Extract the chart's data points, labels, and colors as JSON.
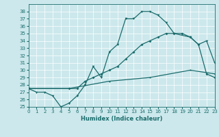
{
  "xlabel": "Humidex (Indice chaleur)",
  "xlim": [
    0,
    23
  ],
  "ylim": [
    25,
    39
  ],
  "yticks": [
    25,
    26,
    27,
    28,
    29,
    30,
    31,
    32,
    33,
    34,
    35,
    36,
    37,
    38
  ],
  "xticks": [
    0,
    1,
    2,
    3,
    4,
    5,
    6,
    7,
    8,
    9,
    10,
    11,
    12,
    13,
    14,
    15,
    16,
    17,
    18,
    19,
    20,
    21,
    22,
    23
  ],
  "bg_color": "#cce8ec",
  "line_color": "#1a6b6b",
  "grid_color": "#b0d8dc",
  "series1_x": [
    0,
    1,
    2,
    3,
    4,
    5,
    6,
    7,
    8,
    9,
    10,
    11,
    12,
    13,
    14,
    15,
    16,
    17,
    18,
    20,
    21,
    22,
    23
  ],
  "series1_y": [
    27.5,
    27.0,
    27.0,
    26.5,
    25.0,
    25.5,
    26.5,
    28.0,
    30.5,
    29.0,
    32.5,
    33.5,
    37.0,
    37.0,
    38.0,
    38.0,
    37.5,
    36.5,
    35.0,
    34.5,
    33.5,
    34.0,
    31.0
  ],
  "series2_x": [
    0,
    5,
    6,
    7,
    8,
    9,
    10,
    11,
    12,
    13,
    14,
    15,
    16,
    17,
    18,
    19,
    20,
    21,
    22,
    23
  ],
  "series2_y": [
    27.5,
    27.5,
    27.5,
    28.5,
    29.0,
    29.5,
    30.0,
    30.5,
    31.5,
    32.5,
    33.5,
    34.0,
    34.5,
    35.0,
    35.0,
    35.0,
    34.5,
    33.5,
    29.5,
    29.0
  ],
  "series3_x": [
    0,
    5,
    10,
    15,
    20,
    23
  ],
  "series3_y": [
    27.5,
    27.5,
    28.5,
    29.0,
    30.0,
    29.5
  ]
}
